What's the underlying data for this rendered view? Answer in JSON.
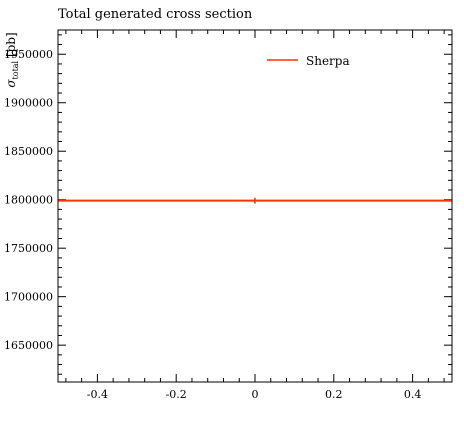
{
  "chart_data": {
    "type": "line",
    "title": "Total generated cross section",
    "ylabel": "σ_total [pb]",
    "xlabel": "",
    "xlim": [
      -0.5,
      0.5
    ],
    "ylim": [
      1612000,
      1975000
    ],
    "x_major_ticks": [
      -0.4,
      -0.2,
      0,
      0.2,
      0.4
    ],
    "x_tick_labels": [
      "-0.4",
      "-0.2",
      "0",
      "0.2",
      "0.4"
    ],
    "y_major_ticks": [
      1650000,
      1700000,
      1750000,
      1800000,
      1850000,
      1900000,
      1950000
    ],
    "y_tick_labels": [
      "1650000",
      "1700000",
      "1750000",
      "1800000",
      "1850000",
      "1900000",
      "1950000"
    ],
    "legend_position": "top-right",
    "series": [
      {
        "name": "Sherpa",
        "color": "#ff3300",
        "x": [
          -0.5,
          0.5
        ],
        "values": [
          1799000,
          1799000
        ],
        "error_point_x": 0,
        "error_low": 1796000,
        "error_high": 1802000
      }
    ]
  }
}
